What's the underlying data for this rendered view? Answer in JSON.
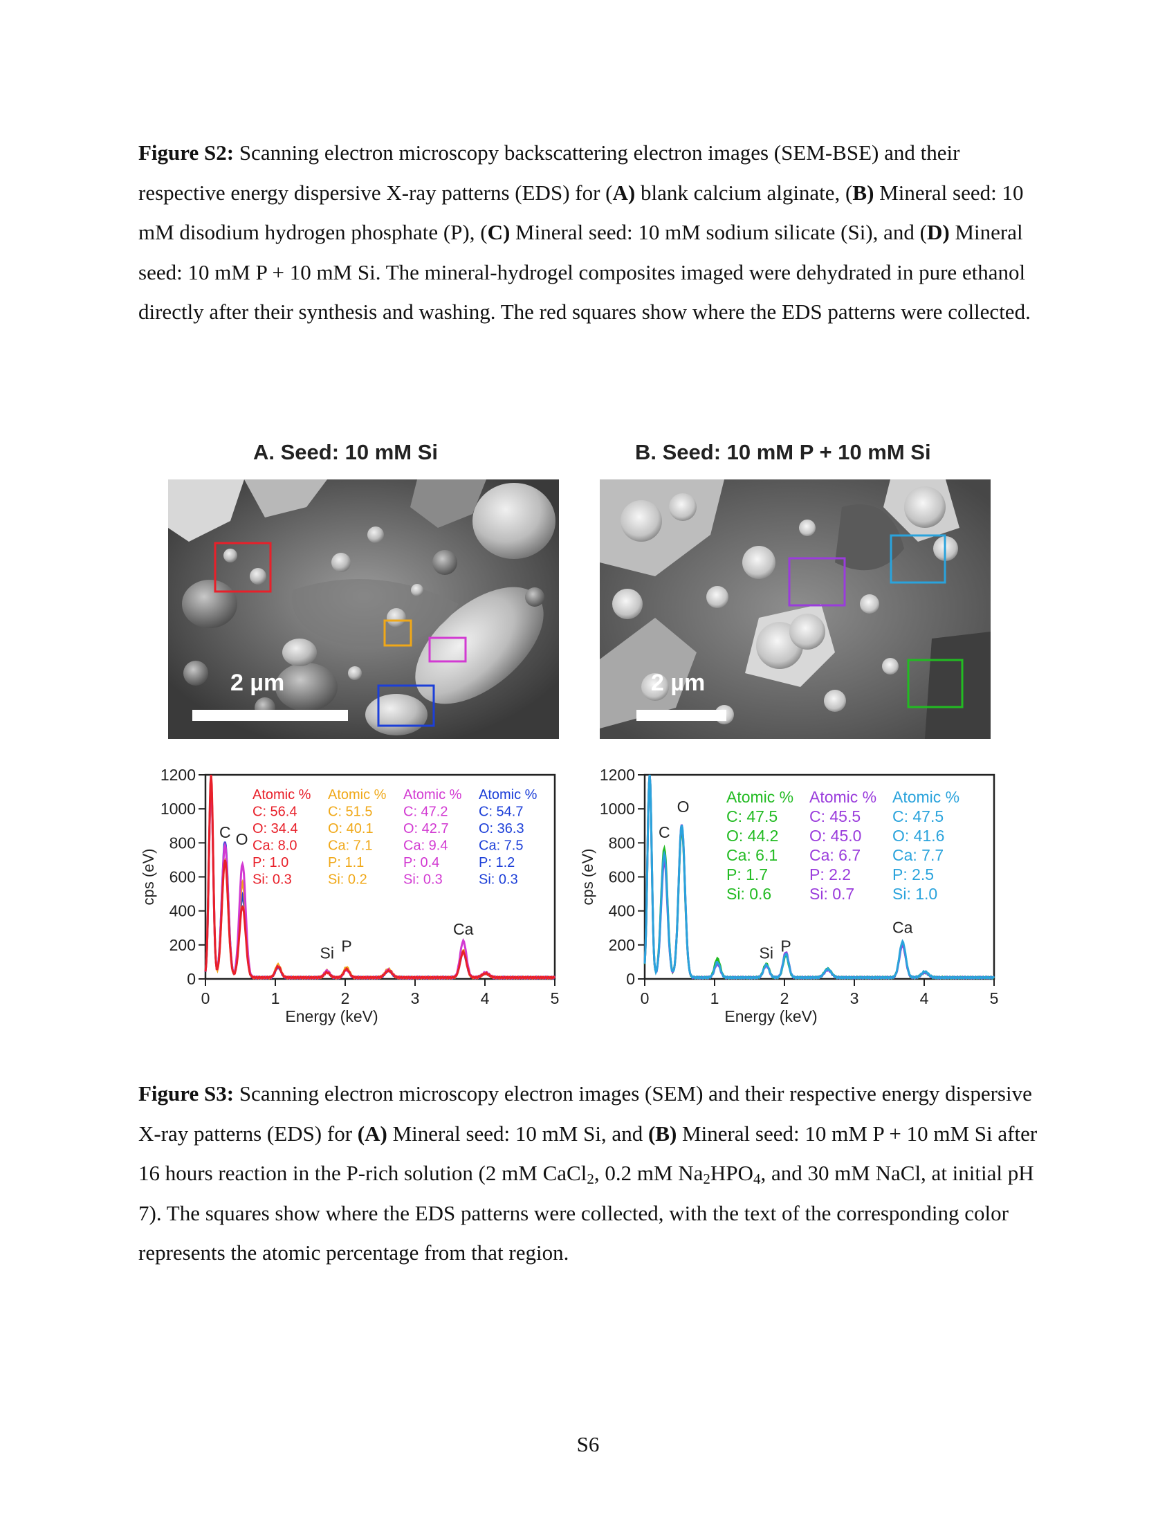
{
  "figure_s2": {
    "label": "Figure S2:",
    "segments": [
      {
        "t": " Scanning electron microscopy backscattering electron images (SEM-BSE) and their respective energy dispersive X-ray patterns (EDS) for (",
        "b": false
      },
      {
        "t": "A)",
        "b": true
      },
      {
        "t": " blank calcium alginate, (",
        "b": false
      },
      {
        "t": "B)",
        "b": true
      },
      {
        "t": " Mineral seed: 10 mM disodium hydrogen phosphate (P), (",
        "b": false
      },
      {
        "t": "C)",
        "b": true
      },
      {
        "t": " Mineral seed: 10 mM sodium silicate (Si), and (",
        "b": false
      },
      {
        "t": "D)",
        "b": true
      },
      {
        "t": " Mineral seed: 10 mM P + 10 mM Si. The mineral-hydrogel composites imaged were dehydrated in pure ethanol directly after their synthesis and washing. The red squares show where the EDS patterns were collected.",
        "b": false
      }
    ]
  },
  "panels": [
    {
      "title": "A. Seed: 10 mM Si",
      "scale_bar": "2 µm"
    },
    {
      "title": "B. Seed: 10 mM P + 10 mM Si",
      "scale_bar": "2 µm"
    }
  ],
  "chart_data": [
    {
      "type": "line",
      "xlabel": "Energy (keV)",
      "ylabel": "cps (eV)",
      "xlim": [
        0,
        5
      ],
      "ylim": [
        0,
        1200
      ],
      "xticks": [
        0,
        1,
        2,
        3,
        4,
        5
      ],
      "yticks": [
        0,
        200,
        400,
        600,
        800,
        1000,
        1200
      ],
      "peak_labels": [
        {
          "text": "C",
          "x": 0.28,
          "y": 830
        },
        {
          "text": "O",
          "x": 0.52,
          "y": 790
        },
        {
          "text": "Si",
          "x": 1.74,
          "y": 120
        },
        {
          "text": "P",
          "x": 2.02,
          "y": 160
        },
        {
          "text": "Ca",
          "x": 3.69,
          "y": 260
        }
      ],
      "legend": [
        {
          "color": "#e8202a",
          "lines": [
            "Atomic %",
            "C: 56.4",
            "O: 34.4",
            "Ca: 8.0",
            "P: 1.0",
            "Si: 0.3"
          ]
        },
        {
          "color": "#f0a818",
          "lines": [
            "Atomic %",
            "C: 51.5",
            "O: 40.1",
            "Ca: 7.1",
            "P: 1.1",
            "Si: 0.2"
          ]
        },
        {
          "color": "#d23ad2",
          "lines": [
            "Atomic %",
            "C: 47.2",
            "O: 42.7",
            "Ca: 9.4",
            "P: 0.4",
            "Si: 0.3"
          ]
        },
        {
          "color": "#1c3fd8",
          "lines": [
            "Atomic %",
            "C: 54.7",
            "O: 36.3",
            "Ca: 7.5",
            "P: 1.2",
            "Si: 0.3"
          ]
        }
      ],
      "series": [
        {
          "color": "#1c3fd8",
          "peaks": [
            [
              0.08,
              1150,
              0.03
            ],
            [
              0.28,
              800,
              0.045
            ],
            [
              0.53,
              480,
              0.045
            ],
            [
              1.04,
              60,
              0.04
            ],
            [
              1.74,
              35,
              0.04
            ],
            [
              2.02,
              55,
              0.04
            ],
            [
              2.62,
              40,
              0.05
            ],
            [
              3.69,
              150,
              0.045
            ],
            [
              4.01,
              25,
              0.05
            ]
          ]
        },
        {
          "color": "#f0a818",
          "peaks": [
            [
              0.08,
              1150,
              0.03
            ],
            [
              0.28,
              690,
              0.045
            ],
            [
              0.53,
              560,
              0.045
            ],
            [
              1.04,
              75,
              0.04
            ],
            [
              1.74,
              40,
              0.04
            ],
            [
              2.02,
              60,
              0.04
            ],
            [
              2.62,
              50,
              0.05
            ],
            [
              3.69,
              160,
              0.045
            ],
            [
              4.01,
              25,
              0.05
            ]
          ]
        },
        {
          "color": "#d23ad2",
          "peaks": [
            [
              0.08,
              1150,
              0.03
            ],
            [
              0.28,
              780,
              0.045
            ],
            [
              0.53,
              670,
              0.045
            ],
            [
              1.04,
              65,
              0.04
            ],
            [
              1.74,
              40,
              0.04
            ],
            [
              2.02,
              45,
              0.04
            ],
            [
              2.62,
              45,
              0.05
            ],
            [
              3.69,
              215,
              0.045
            ],
            [
              4.01,
              30,
              0.05
            ]
          ]
        },
        {
          "color": "#e8202a",
          "peaks": [
            [
              0.08,
              1200,
              0.03
            ],
            [
              0.28,
              690,
              0.045
            ],
            [
              0.53,
              420,
              0.045
            ],
            [
              1.04,
              65,
              0.04
            ],
            [
              1.74,
              30,
              0.04
            ],
            [
              2.02,
              50,
              0.04
            ],
            [
              2.62,
              40,
              0.05
            ],
            [
              3.69,
              150,
              0.045
            ],
            [
              4.01,
              25,
              0.05
            ]
          ]
        }
      ]
    },
    {
      "type": "line",
      "xlabel": "Energy (keV)",
      "ylabel": "cps (eV)",
      "xlim": [
        0,
        5
      ],
      "ylim": [
        0,
        1200
      ],
      "xticks": [
        0,
        1,
        2,
        3,
        4,
        5
      ],
      "yticks": [
        0,
        200,
        400,
        600,
        800,
        1000,
        1200
      ],
      "peak_labels": [
        {
          "text": "C",
          "x": 0.28,
          "y": 830
        },
        {
          "text": "O",
          "x": 0.55,
          "y": 980
        },
        {
          "text": "Si",
          "x": 1.74,
          "y": 120
        },
        {
          "text": "P",
          "x": 2.02,
          "y": 160
        },
        {
          "text": "Ca",
          "x": 3.69,
          "y": 270
        }
      ],
      "legend": [
        {
          "color": "#22bb22",
          "lines": [
            "Atomic %",
            "C: 47.5",
            "O: 44.2",
            "Ca: 6.1",
            "P: 1.7",
            "Si: 0.6"
          ]
        },
        {
          "color": "#9a3cdc",
          "lines": [
            "Atomic %",
            "C: 45.5",
            "O: 45.0",
            "Ca: 6.7",
            "P: 2.2",
            "Si: 0.7"
          ]
        },
        {
          "color": "#2aa3dc",
          "lines": [
            "Atomic %",
            "C: 47.5",
            "O: 41.6",
            "Ca: 7.7",
            "P: 2.5",
            "Si: 1.0"
          ]
        }
      ],
      "series": [
        {
          "color": "#22bb22",
          "peaks": [
            [
              0.07,
              1200,
              0.03
            ],
            [
              0.28,
              760,
              0.045
            ],
            [
              0.53,
              880,
              0.045
            ],
            [
              1.04,
              110,
              0.04
            ],
            [
              1.74,
              80,
              0.04
            ],
            [
              2.02,
              130,
              0.04
            ],
            [
              2.62,
              50,
              0.05
            ],
            [
              3.69,
              200,
              0.045
            ],
            [
              4.01,
              30,
              0.05
            ]
          ]
        },
        {
          "color": "#9a3cdc",
          "peaks": [
            [
              0.07,
              1200,
              0.03
            ],
            [
              0.28,
              690,
              0.045
            ],
            [
              0.53,
              900,
              0.045
            ],
            [
              1.04,
              80,
              0.04
            ],
            [
              1.74,
              70,
              0.04
            ],
            [
              2.02,
              150,
              0.04
            ],
            [
              2.62,
              45,
              0.05
            ],
            [
              3.69,
              190,
              0.045
            ],
            [
              4.01,
              30,
              0.05
            ]
          ]
        },
        {
          "color": "#2aa3dc",
          "peaks": [
            [
              0.07,
              1200,
              0.03
            ],
            [
              0.28,
              730,
              0.045
            ],
            [
              0.53,
              900,
              0.045
            ],
            [
              1.04,
              90,
              0.04
            ],
            [
              1.74,
              75,
              0.04
            ],
            [
              2.02,
              140,
              0.04
            ],
            [
              2.62,
              50,
              0.05
            ],
            [
              3.69,
              210,
              0.045
            ],
            [
              4.01,
              35,
              0.05
            ]
          ]
        }
      ]
    }
  ],
  "figure_s3": {
    "label": "Figure S3:",
    "segments": [
      {
        "t": " Scanning electron microscopy electron images (SEM) and their respective energy dispersive X-ray patterns (EDS) for ",
        "b": false
      },
      {
        "t": "(A)",
        "b": true
      },
      {
        "t": "  Mineral seed: 10 mM Si, and ",
        "b": false
      },
      {
        "t": "(B)",
        "b": true
      },
      {
        "t": " Mineral seed: 10 mM P + 10 mM Si after 16 hours reaction in the P-rich solution (2 mM CaCl",
        "b": false
      },
      {
        "t": "2",
        "b": false,
        "sub": true
      },
      {
        "t": ", 0.2 mM Na",
        "b": false
      },
      {
        "t": "2",
        "b": false,
        "sub": true
      },
      {
        "t": "HPO",
        "b": false
      },
      {
        "t": "4",
        "b": false,
        "sub": true
      },
      {
        "t": ", and 30 mM NaCl, at initial pH 7). The squares show where the EDS patterns were collected, with the text of the corresponding color represents the atomic percentage from that region.",
        "b": false
      }
    ]
  },
  "page_number": "S6",
  "colors": {
    "region_red": "#e8202a",
    "region_orange": "#f0a818",
    "region_magenta": "#d23ad2",
    "region_blue": "#1c3fd8",
    "region_purple": "#9a3cdc",
    "region_cyan": "#2aa3dc",
    "region_green": "#22bb22"
  }
}
